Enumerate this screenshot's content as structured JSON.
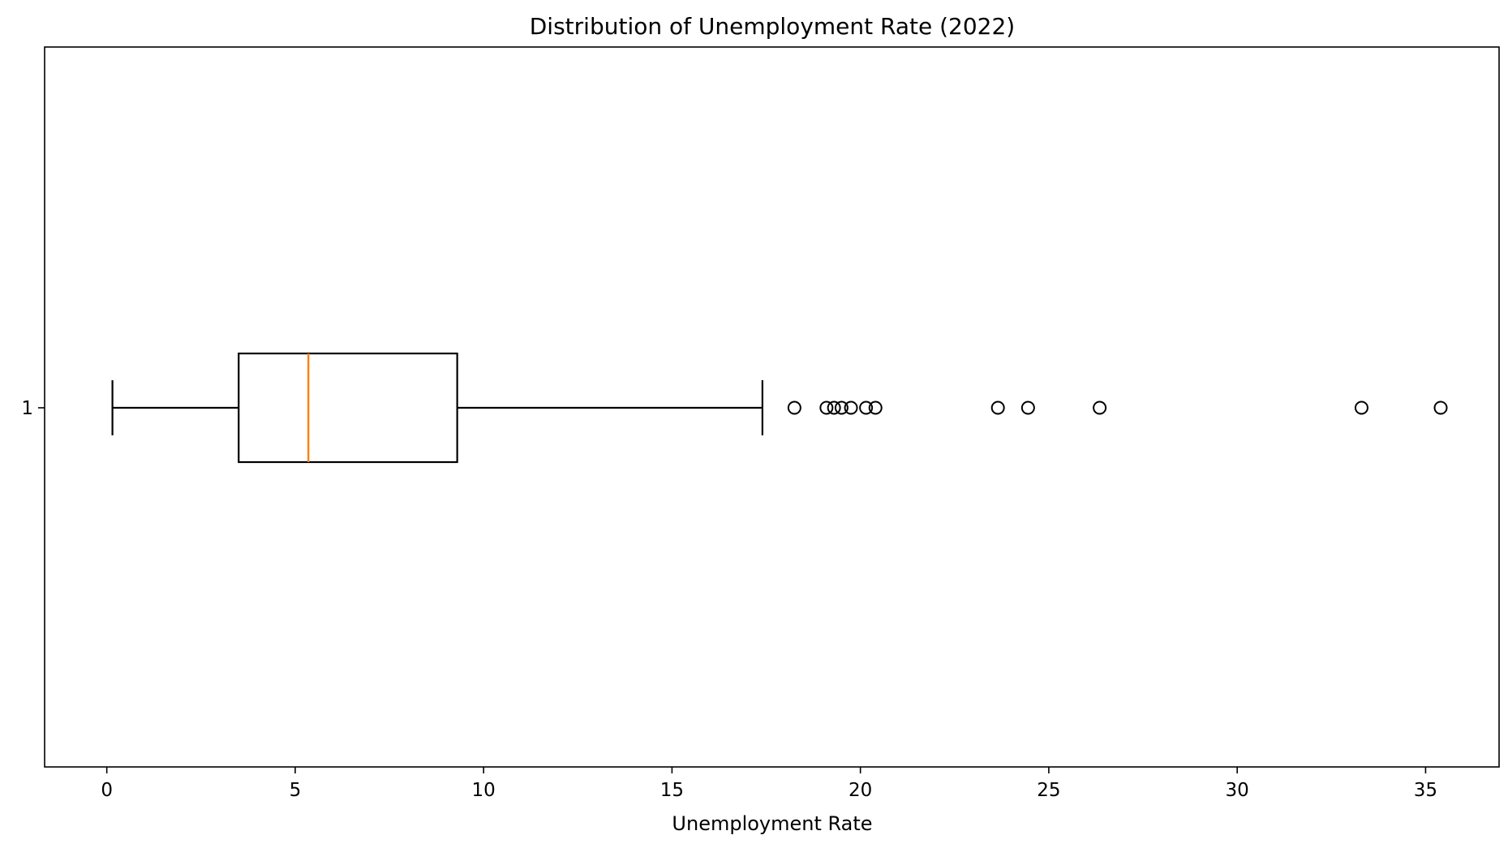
{
  "chart_data": {
    "type": "boxplot",
    "orientation": "horizontal",
    "title": "Distribution of Unemployment Rate (2022)",
    "xlabel": "Unemployment Rate",
    "ylabel": "",
    "xlim": [
      -1.65,
      36.95
    ],
    "xticks": [
      0,
      5,
      10,
      15,
      20,
      25,
      30,
      35
    ],
    "xtick_labels": [
      "0",
      "5",
      "10",
      "15",
      "20",
      "25",
      "30",
      "35"
    ],
    "categories": [
      "1"
    ],
    "grid": false,
    "box": {
      "whisker_low": 0.15,
      "q1": 3.5,
      "median": 5.35,
      "q3": 9.3,
      "whisker_high": 17.4
    },
    "outliers": [
      18.25,
      19.1,
      19.3,
      19.5,
      19.75,
      20.15,
      20.4,
      23.65,
      24.45,
      26.35,
      33.3,
      35.4
    ],
    "colors": {
      "box": "#000000",
      "median": "#ff7f0e",
      "outlier_edge": "#000000"
    }
  }
}
